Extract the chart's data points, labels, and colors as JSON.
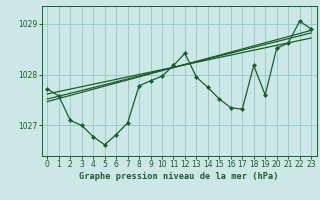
{
  "background_color": "#cce8e6",
  "grid_color": "#99cccc",
  "line_color": "#1a5c2a",
  "title": "Graphe pression niveau de la mer (hPa)",
  "xlim": [
    -0.5,
    23.5
  ],
  "ylim": [
    1026.4,
    1029.35
  ],
  "yticks": [
    1027,
    1028,
    1029
  ],
  "xticks": [
    0,
    1,
    2,
    3,
    4,
    5,
    6,
    7,
    8,
    9,
    10,
    11,
    12,
    13,
    14,
    15,
    16,
    17,
    18,
    19,
    20,
    21,
    22,
    23
  ],
  "main_x": [
    0,
    1,
    2,
    3,
    4,
    5,
    6,
    7,
    8,
    9,
    10,
    11,
    12,
    13,
    14,
    15,
    16,
    17,
    18,
    19,
    20,
    21,
    22,
    23
  ],
  "main_y": [
    1027.72,
    1027.58,
    1027.1,
    1027.0,
    1026.78,
    1026.62,
    1026.82,
    1027.05,
    1027.78,
    1027.88,
    1027.97,
    1028.18,
    1028.42,
    1027.95,
    1027.75,
    1027.52,
    1027.35,
    1027.32,
    1028.18,
    1027.6,
    1028.52,
    1028.62,
    1029.05,
    1028.9
  ],
  "trend1_x": [
    0,
    23
  ],
  "trend1_y": [
    1027.62,
    1028.72
  ],
  "trend2_x": [
    0,
    23
  ],
  "trend2_y": [
    1027.52,
    1028.82
  ],
  "trend3_x": [
    0,
    23
  ],
  "trend3_y": [
    1027.47,
    1028.87
  ]
}
